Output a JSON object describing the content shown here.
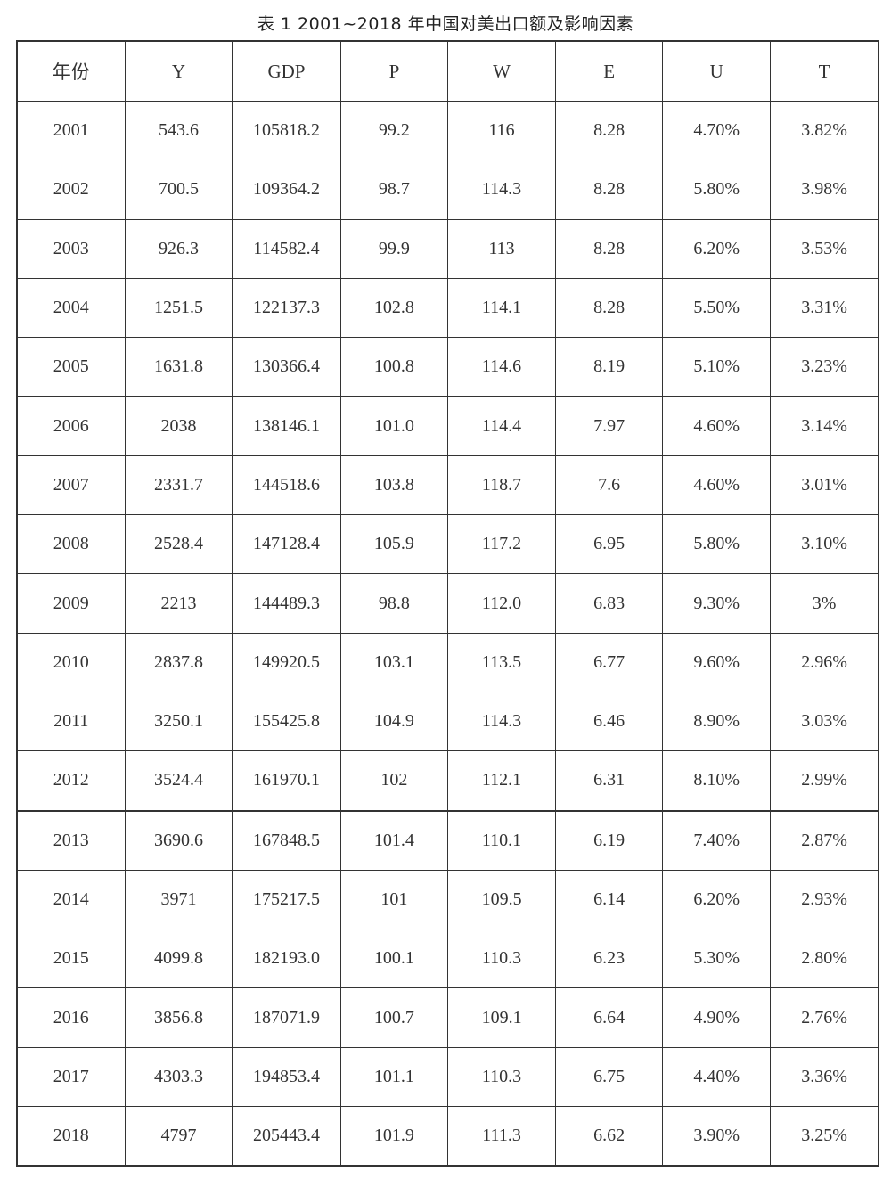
{
  "title": "表 1   2001~2018 年中国对美出口额及影响因素",
  "table": {
    "headers": [
      "年份",
      "Y",
      "GDP",
      "P",
      "W",
      "E",
      "U",
      "T"
    ],
    "rows": [
      [
        "2001",
        "543.6",
        "105818.2",
        "99.2",
        "116",
        "8.28",
        "4.70%",
        "3.82%"
      ],
      [
        "2002",
        "700.5",
        "109364.2",
        "98.7",
        "114.3",
        "8.28",
        "5.80%",
        "3.98%"
      ],
      [
        "2003",
        "926.3",
        "114582.4",
        "99.9",
        "113",
        "8.28",
        "6.20%",
        "3.53%"
      ],
      [
        "2004",
        "1251.5",
        "122137.3",
        "102.8",
        "114.1",
        "8.28",
        "5.50%",
        "3.31%"
      ],
      [
        "2005",
        "1631.8",
        "130366.4",
        "100.8",
        "114.6",
        "8.19",
        "5.10%",
        "3.23%"
      ],
      [
        "2006",
        "2038",
        "138146.1",
        "101.0",
        "114.4",
        "7.97",
        "4.60%",
        "3.14%"
      ],
      [
        "2007",
        "2331.7",
        "144518.6",
        "103.8",
        "118.7",
        "7.6",
        "4.60%",
        "3.01%"
      ],
      [
        "2008",
        "2528.4",
        "147128.4",
        "105.9",
        "117.2",
        "6.95",
        "5.80%",
        "3.10%"
      ],
      [
        "2009",
        "2213",
        "144489.3",
        "98.8",
        "112.0",
        "6.83",
        "9.30%",
        "3%"
      ],
      [
        "2010",
        "2837.8",
        "149920.5",
        "103.1",
        "113.5",
        "6.77",
        "9.60%",
        "2.96%"
      ],
      [
        "2011",
        "3250.1",
        "155425.8",
        "104.9",
        "114.3",
        "6.46",
        "8.90%",
        "3.03%"
      ],
      [
        "2012",
        "3524.4",
        "161970.1",
        "102",
        "112.1",
        "6.31",
        "8.10%",
        "2.99%"
      ],
      [
        "2013",
        "3690.6",
        "167848.5",
        "101.4",
        "110.1",
        "6.19",
        "7.40%",
        "2.87%"
      ],
      [
        "2014",
        "3971",
        "175217.5",
        "101",
        "109.5",
        "6.14",
        "6.20%",
        "2.93%"
      ],
      [
        "2015",
        "4099.8",
        "182193.0",
        "100.1",
        "110.3",
        "6.23",
        "5.30%",
        "2.80%"
      ],
      [
        "2016",
        "3856.8",
        "187071.9",
        "100.7",
        "109.1",
        "6.64",
        "4.90%",
        "2.76%"
      ],
      [
        "2017",
        "4303.3",
        "194853.4",
        "101.1",
        "110.3",
        "6.75",
        "4.40%",
        "3.36%"
      ],
      [
        "2018",
        "4797",
        "205443.4",
        "101.9",
        "111.3",
        "6.62",
        "3.90%",
        "3.25%"
      ]
    ]
  }
}
